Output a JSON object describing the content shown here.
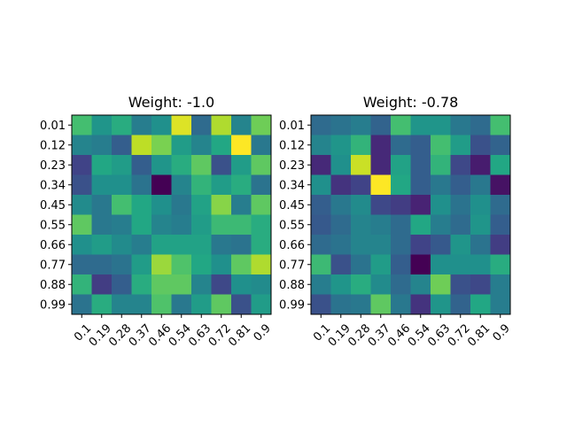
{
  "chart_data": [
    {
      "type": "heatmap",
      "title": "Weight: -1.0",
      "x_ticks": [
        "0.1",
        "0.19",
        "0.28",
        "0.37",
        "0.46",
        "0.54",
        "0.63",
        "0.72",
        "0.81",
        "0.9"
      ],
      "y_ticks": [
        "0.01",
        "0.12",
        "0.23",
        "0.34",
        "0.45",
        "0.55",
        "0.66",
        "0.77",
        "0.88",
        "0.99"
      ],
      "colormap": "viridis",
      "grid": false,
      "values": [
        [
          0.7,
          0.52,
          0.62,
          0.42,
          0.5,
          0.95,
          0.35,
          0.88,
          0.45,
          0.78
        ],
        [
          0.45,
          0.42,
          0.3,
          0.9,
          0.8,
          0.55,
          0.45,
          0.6,
          1.0,
          0.4
        ],
        [
          0.2,
          0.6,
          0.55,
          0.3,
          0.52,
          0.62,
          0.75,
          0.25,
          0.55,
          0.75
        ],
        [
          0.25,
          0.5,
          0.5,
          0.38,
          0.0,
          0.45,
          0.65,
          0.55,
          0.62,
          0.38
        ],
        [
          0.48,
          0.4,
          0.7,
          0.6,
          0.5,
          0.4,
          0.58,
          0.82,
          0.42,
          0.75
        ],
        [
          0.75,
          0.4,
          0.42,
          0.6,
          0.45,
          0.42,
          0.55,
          0.68,
          0.68,
          0.62
        ],
        [
          0.5,
          0.55,
          0.48,
          0.42,
          0.58,
          0.58,
          0.58,
          0.4,
          0.38,
          0.62
        ],
        [
          0.35,
          0.35,
          0.38,
          0.55,
          0.85,
          0.72,
          0.6,
          0.5,
          0.75,
          0.88
        ],
        [
          0.65,
          0.18,
          0.3,
          0.62,
          0.75,
          0.75,
          0.45,
          0.22,
          0.5,
          0.48
        ],
        [
          0.38,
          0.62,
          0.45,
          0.45,
          0.72,
          0.4,
          0.55,
          0.75,
          0.25,
          0.55
        ]
      ]
    },
    {
      "type": "heatmap",
      "title": "Weight: -0.78",
      "x_ticks": [
        "0.1",
        "0.19",
        "0.28",
        "0.37",
        "0.46",
        "0.54",
        "0.63",
        "0.72",
        "0.81",
        "0.9"
      ],
      "y_ticks": [
        "0.01",
        "0.12",
        "0.23",
        "0.34",
        "0.45",
        "0.55",
        "0.66",
        "0.77",
        "0.88",
        "0.99"
      ],
      "colormap": "viridis",
      "grid": false,
      "values": [
        [
          0.35,
          0.38,
          0.42,
          0.32,
          0.7,
          0.52,
          0.52,
          0.4,
          0.35,
          0.7
        ],
        [
          0.45,
          0.52,
          0.65,
          0.12,
          0.35,
          0.3,
          0.7,
          0.55,
          0.25,
          0.32
        ],
        [
          0.12,
          0.5,
          0.92,
          0.12,
          0.58,
          0.3,
          0.65,
          0.22,
          0.08,
          0.6
        ],
        [
          0.5,
          0.15,
          0.2,
          1.0,
          0.6,
          0.3,
          0.4,
          0.3,
          0.4,
          0.05
        ],
        [
          0.3,
          0.4,
          0.48,
          0.22,
          0.18,
          0.1,
          0.5,
          0.38,
          0.5,
          0.35
        ],
        [
          0.28,
          0.35,
          0.45,
          0.42,
          0.35,
          0.6,
          0.42,
          0.35,
          0.52,
          0.3
        ],
        [
          0.35,
          0.38,
          0.45,
          0.45,
          0.35,
          0.2,
          0.28,
          0.52,
          0.38,
          0.18
        ],
        [
          0.68,
          0.25,
          0.38,
          0.55,
          0.3,
          0.0,
          0.5,
          0.5,
          0.5,
          0.62
        ],
        [
          0.42,
          0.52,
          0.62,
          0.48,
          0.35,
          0.45,
          0.78,
          0.25,
          0.22,
          0.42
        ],
        [
          0.25,
          0.38,
          0.4,
          0.75,
          0.4,
          0.15,
          0.52,
          0.32,
          0.6,
          0.42
        ]
      ]
    }
  ]
}
